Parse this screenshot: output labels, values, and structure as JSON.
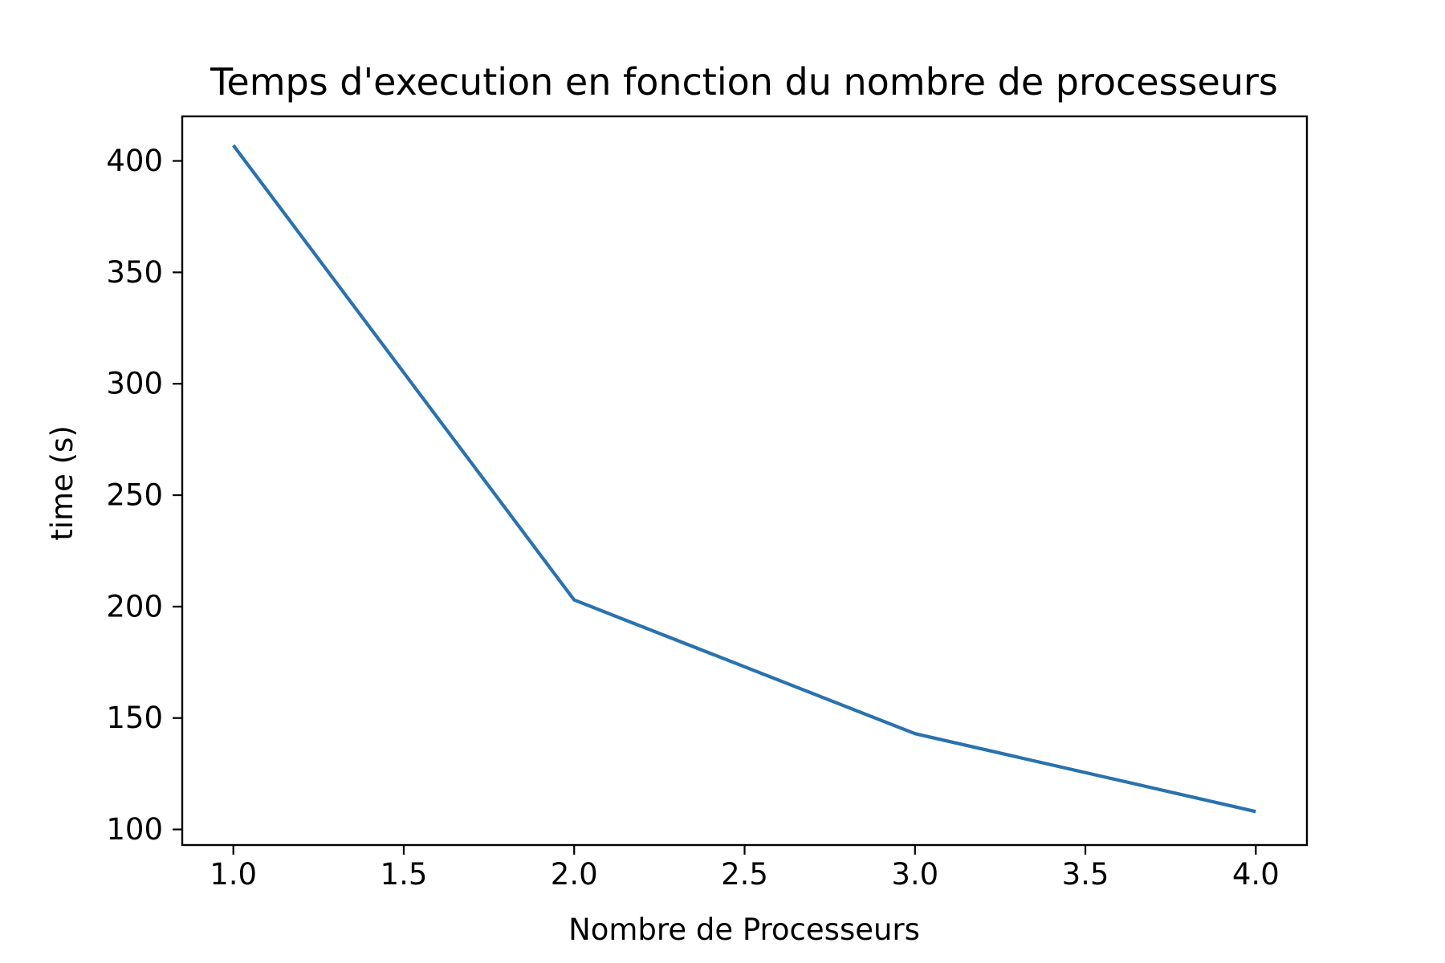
{
  "chart_data": {
    "type": "line",
    "title": "Temps  d'execution en fonction du nombre de processeurs",
    "xlabel": "Nombre  de Processeurs",
    "ylabel": "time (s)",
    "xlim": [
      0.85,
      4.15
    ],
    "ylim": [
      93,
      420
    ],
    "x_ticks": [
      1.0,
      1.5,
      2.0,
      2.5,
      3.0,
      3.5,
      4.0
    ],
    "x_tick_labels": [
      "1.0",
      "1.5",
      "2.0",
      "2.5",
      "3.0",
      "3.5",
      "4.0"
    ],
    "y_ticks": [
      100,
      150,
      200,
      250,
      300,
      350,
      400
    ],
    "y_tick_labels": [
      "100",
      "150",
      "200",
      "250",
      "300",
      "350",
      "400"
    ],
    "grid": false,
    "legend": false,
    "series": [
      {
        "x": [
          1,
          2,
          3,
          4
        ],
        "y": [
          407,
          203,
          143,
          108
        ],
        "color": "#2a72ae"
      }
    ]
  }
}
